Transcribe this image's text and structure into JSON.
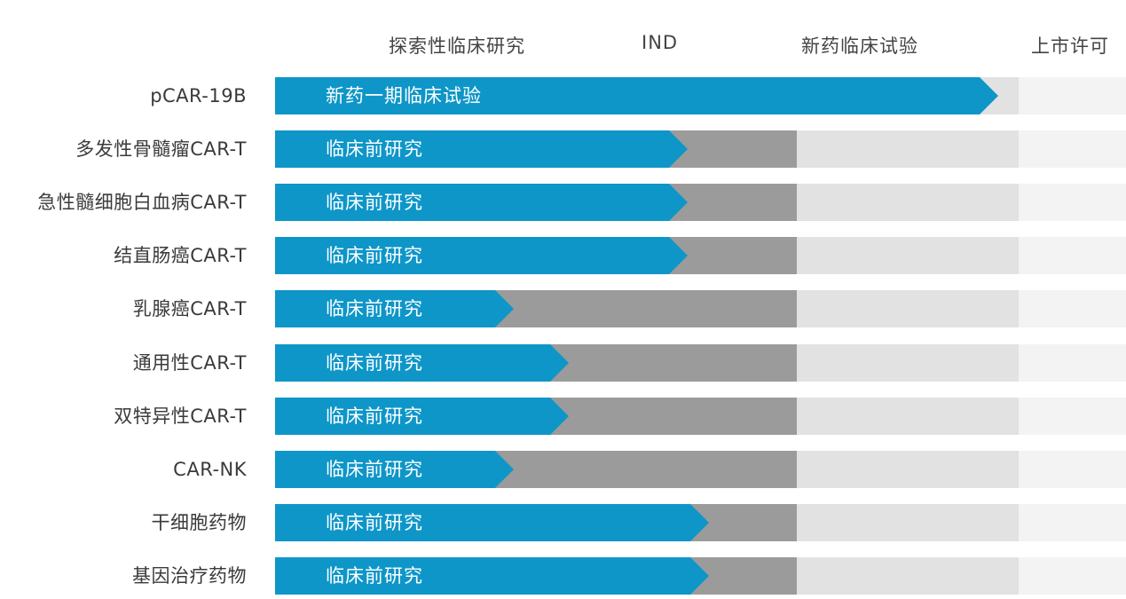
{
  "chart_data": {
    "type": "bar",
    "stages": [
      "探索性临床研究",
      "IND",
      "新药临床试验",
      "上市许可"
    ],
    "rows": [
      {
        "name": "pCAR-19B",
        "status": "新药一期临床试验",
        "progress": 0.85
      },
      {
        "name": "多发性骨髓瘤CAR-T",
        "status": "临床前研究",
        "progress": 0.485
      },
      {
        "name": "急性髓细胞白血病CAR-T",
        "status": "临床前研究",
        "progress": 0.485
      },
      {
        "name": "结直肠癌CAR-T",
        "status": "临床前研究",
        "progress": 0.485
      },
      {
        "name": "乳腺癌CAR-T",
        "status": "临床前研究",
        "progress": 0.28
      },
      {
        "name": "通用性CAR-T",
        "status": "临床前研究",
        "progress": 0.345
      },
      {
        "name": "双特异性CAR-T",
        "status": "临床前研究",
        "progress": 0.345
      },
      {
        "name": "CAR-NK",
        "status": "临床前研究",
        "progress": 0.28
      },
      {
        "name": "干细胞药物",
        "status": "临床前研究",
        "progress": 0.51
      },
      {
        "name": "基因治疗药物",
        "status": "临床前研究",
        "progress": 0.51
      }
    ],
    "colors": {
      "progress": "#0e96c8",
      "preclinical_zone": "#9b9b9b",
      "clinical_zone": "#e2e2e2",
      "market_zone": "#f3f3f3"
    }
  }
}
